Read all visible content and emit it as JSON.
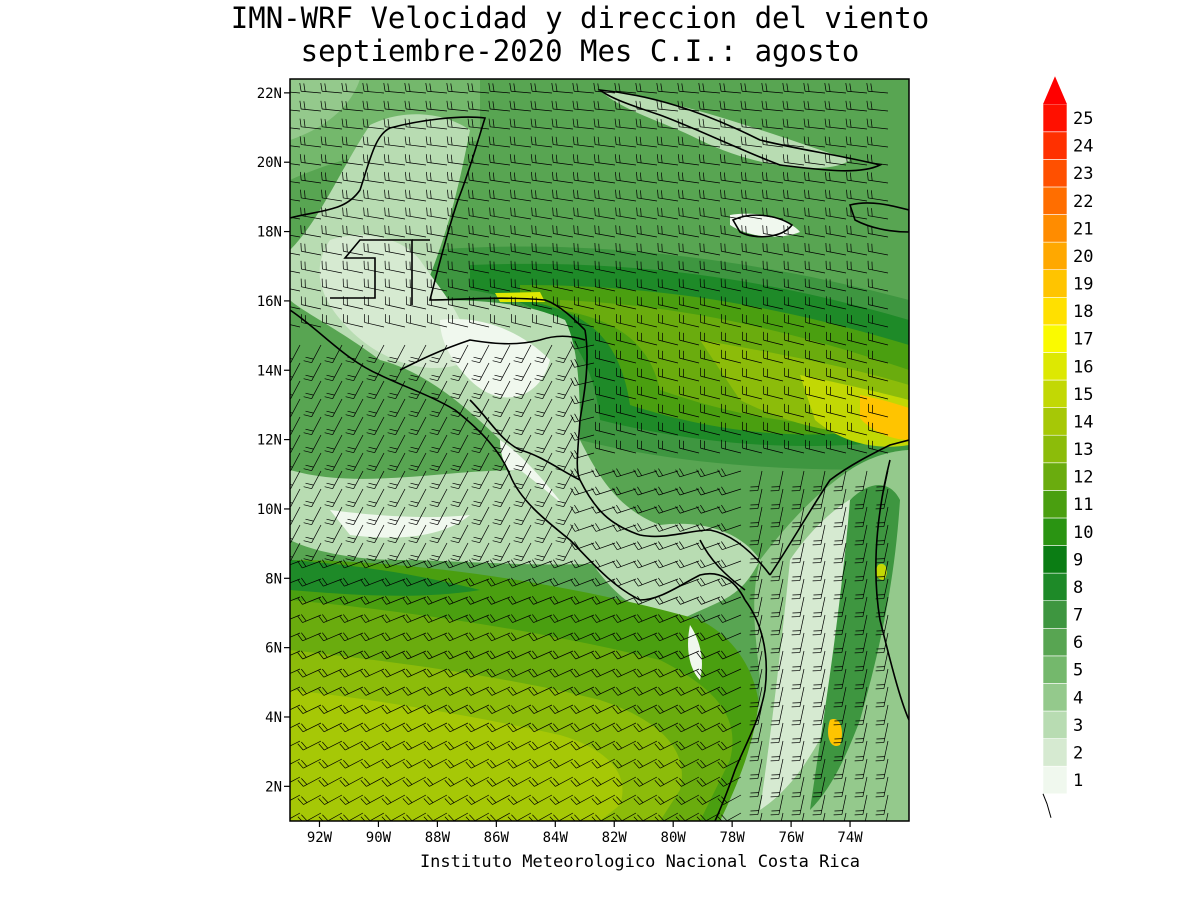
{
  "title": {
    "line1": "IMN-WRF Velocidad y direccion del viento",
    "line2": "septiembre-2020 Mes C.I.: agosto"
  },
  "footer": "Instituto Meteorologico Nacional Costa Rica",
  "map": {
    "lon_range": [
      -93,
      -72
    ],
    "lat_range": [
      1,
      22.4
    ],
    "lat_ticks": [
      {
        "value": 22,
        "label": "22N"
      },
      {
        "value": 20,
        "label": "20N"
      },
      {
        "value": 18,
        "label": "18N"
      },
      {
        "value": 16,
        "label": "16N"
      },
      {
        "value": 14,
        "label": "14N"
      },
      {
        "value": 12,
        "label": "12N"
      },
      {
        "value": 10,
        "label": "10N"
      },
      {
        "value": 8,
        "label": "8N"
      },
      {
        "value": 6,
        "label": "6N"
      },
      {
        "value": 4,
        "label": "4N"
      },
      {
        "value": 2,
        "label": "2N"
      }
    ],
    "lon_ticks": [
      {
        "value": -92,
        "label": "92W"
      },
      {
        "value": -90,
        "label": "90W"
      },
      {
        "value": -88,
        "label": "88W"
      },
      {
        "value": -86,
        "label": "86W"
      },
      {
        "value": -84,
        "label": "84W"
      },
      {
        "value": -82,
        "label": "82W"
      },
      {
        "value": -80,
        "label": "80W"
      },
      {
        "value": -78,
        "label": "78W"
      },
      {
        "value": -76,
        "label": "76W"
      },
      {
        "value": -74,
        "label": "74W"
      }
    ]
  },
  "colorbar": {
    "levels": [
      {
        "label": "1",
        "color": "#f0f8ee"
      },
      {
        "label": "2",
        "color": "#d6ead1"
      },
      {
        "label": "3",
        "color": "#b8dcb2"
      },
      {
        "label": "4",
        "color": "#94c98c"
      },
      {
        "label": "5",
        "color": "#74b86c"
      },
      {
        "label": "6",
        "color": "#58a552"
      },
      {
        "label": "7",
        "color": "#3e9640"
      },
      {
        "label": "8",
        "color": "#1e8a28"
      },
      {
        "label": "9",
        "color": "#0b7d14"
      },
      {
        "label": "10",
        "color": "#2a9412"
      },
      {
        "label": "11",
        "color": "#4a9f10"
      },
      {
        "label": "12",
        "color": "#6aac0e"
      },
      {
        "label": "13",
        "color": "#8cbc0a"
      },
      {
        "label": "14",
        "color": "#a6c806"
      },
      {
        "label": "15",
        "color": "#c2d804"
      },
      {
        "label": "16",
        "color": "#dde802"
      },
      {
        "label": "17",
        "color": "#fafa00"
      },
      {
        "label": "18",
        "color": "#ffe000"
      },
      {
        "label": "19",
        "color": "#ffc400"
      },
      {
        "label": "20",
        "color": "#ffa800"
      },
      {
        "label": "21",
        "color": "#ff8c00"
      },
      {
        "label": "22",
        "color": "#ff6e00"
      },
      {
        "label": "23",
        "color": "#ff5000"
      },
      {
        "label": "24",
        "color": "#ff3000"
      },
      {
        "label": "25",
        "color": "#ff1000"
      }
    ],
    "arrow_color": "#ff0000"
  }
}
